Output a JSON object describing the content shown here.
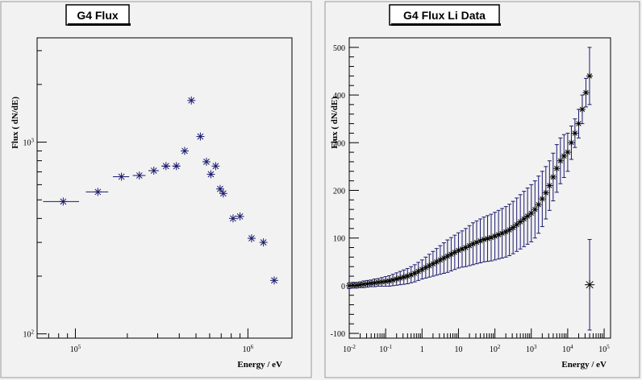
{
  "chart_data": [
    {
      "type": "scatter",
      "title": "G4 Flux",
      "xlabel": "Energy / eV",
      "ylabel": "Flux ( dN/dE)",
      "x_scale": "log",
      "y_scale": "log",
      "xlim": [
        60000,
        1800000
      ],
      "ylim": [
        95,
        3500
      ],
      "x_tick_labels": [
        "10^5",
        "10^6"
      ],
      "y_tick_labels": [
        "10^2",
        "10^3"
      ],
      "marker_color": "#1a1a6e",
      "series": [
        {
          "x": [
            85000,
            135000,
            185000,
            235000,
            285000,
            335000,
            385000,
            430000,
            470000,
            530000,
            575000,
            610000,
            650000,
            690000,
            720000,
            820000,
            900000,
            1050000,
            1230000,
            1420000
          ],
          "y": [
            490,
            550,
            660,
            670,
            710,
            750,
            750,
            900,
            1650,
            1070,
            790,
            680,
            750,
            570,
            540,
            400,
            410,
            315,
            300,
            190
          ],
          "x_err": [
            [
              20000,
              20000
            ],
            [
              20000,
              20000
            ],
            [
              20000,
              20000
            ],
            [
              20000,
              20000
            ],
            [
              20000,
              20000
            ],
            [
              20000,
              20000
            ],
            [
              20000,
              20000
            ],
            [
              0,
              0
            ],
            [
              0,
              0
            ],
            [
              0,
              0
            ],
            [
              0,
              0
            ],
            [
              0,
              0
            ],
            [
              0,
              0
            ],
            [
              0,
              0
            ],
            [
              0,
              0
            ],
            [
              0,
              0
            ],
            [
              0,
              0
            ],
            [
              0,
              0
            ],
            [
              0,
              0
            ],
            [
              0,
              0
            ]
          ]
        }
      ]
    },
    {
      "type": "scatter",
      "title": "G4 Flux Li Data",
      "xlabel": "Energy / eV",
      "ylabel": "Flux ( dN/dE)",
      "x_scale": "log",
      "y_scale": "linear",
      "xlim": [
        0.01,
        150000
      ],
      "ylim": [
        -110,
        520
      ],
      "x_tick_labels": [
        "10^-2",
        "10^-1",
        "1",
        "10",
        "10^2",
        "10^3",
        "10^4",
        "10^5"
      ],
      "y_tick_labels": [
        "-100",
        "0",
        "100",
        "200",
        "300",
        "400",
        "500"
      ],
      "marker_color": "#000000",
      "error_color": "#1a1a6e",
      "series": [
        {
          "x": [
            0.01,
            0.0126,
            0.0158,
            0.02,
            0.0251,
            0.0316,
            0.0398,
            0.05,
            0.063,
            0.079,
            0.1,
            0.126,
            0.158,
            0.2,
            0.251,
            0.316,
            0.398,
            0.5,
            0.63,
            0.79,
            1.0,
            1.26,
            1.58,
            2.0,
            2.51,
            3.16,
            3.98,
            5.0,
            6.3,
            7.9,
            10,
            12.6,
            15.8,
            20,
            25.1,
            31.6,
            39.8,
            50,
            63,
            79,
            100,
            126,
            158,
            200,
            251,
            316,
            398,
            500,
            630,
            790,
            1000,
            1260,
            1580,
            2000,
            2510,
            3160,
            3980,
            5000,
            6300,
            7900,
            10000,
            12600,
            15800,
            20000,
            25100,
            31600,
            39800
          ],
          "y": [
            0,
            1,
            1,
            2,
            3,
            4,
            5,
            6,
            7,
            8,
            9,
            10,
            12,
            14,
            16,
            18,
            20,
            23,
            26,
            30,
            34,
            38,
            42,
            46,
            50,
            54,
            58,
            62,
            66,
            70,
            74,
            77,
            80,
            84,
            88,
            91,
            94,
            97,
            99,
            101,
            104,
            107,
            110,
            113,
            117,
            122,
            128,
            134,
            140,
            146,
            152,
            160,
            170,
            182,
            195,
            210,
            228,
            246,
            262,
            272,
            280,
            300,
            320,
            340,
            370,
            405,
            440
          ],
          "y_err": [
            6,
            6,
            6,
            6,
            7,
            7,
            7,
            8,
            8,
            9,
            10,
            11,
            12,
            13,
            14,
            15,
            16,
            17,
            18,
            19,
            20,
            22,
            24,
            26,
            28,
            30,
            32,
            34,
            35,
            36,
            37,
            38,
            40,
            42,
            44,
            45,
            46,
            47,
            48,
            49,
            50,
            51,
            52,
            53,
            54,
            55,
            56,
            57,
            58,
            59,
            60,
            60,
            60,
            58,
            55,
            52,
            50,
            50,
            48,
            45,
            40,
            35,
            30,
            30,
            30,
            30,
            60
          ]
        },
        {
          "x": [
            40000
          ],
          "y": [
            2
          ],
          "y_err": [
            95
          ]
        }
      ]
    }
  ]
}
